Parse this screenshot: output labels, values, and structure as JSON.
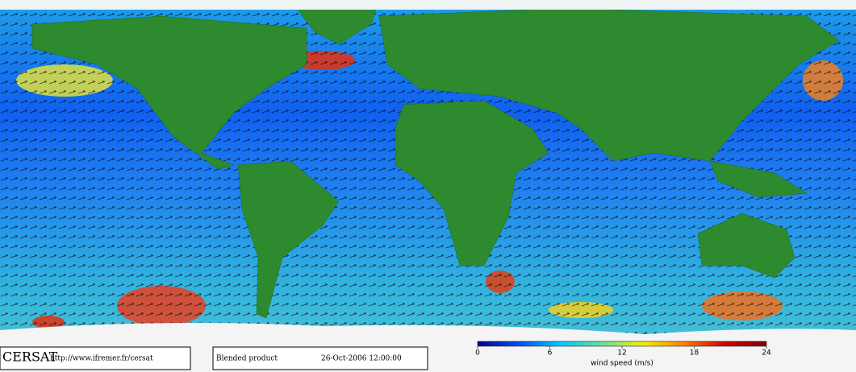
{
  "logo": "CERSAT",
  "footer": {
    "url": "http://www.ifremer.fr/cersat",
    "product": "Blended product",
    "date": "26-Oct-2006 12:00:00"
  },
  "colorbar": {
    "label": "wind speed (m/s)",
    "lim": [
      0,
      24
    ],
    "ticks": [
      0,
      6,
      12,
      18,
      24
    ],
    "colors": [
      "#00008c",
      "#0050ff",
      "#00c8ff",
      "#60e0a0",
      "#f0f000",
      "#ff8000",
      "#d00000",
      "#800000"
    ]
  }
}
